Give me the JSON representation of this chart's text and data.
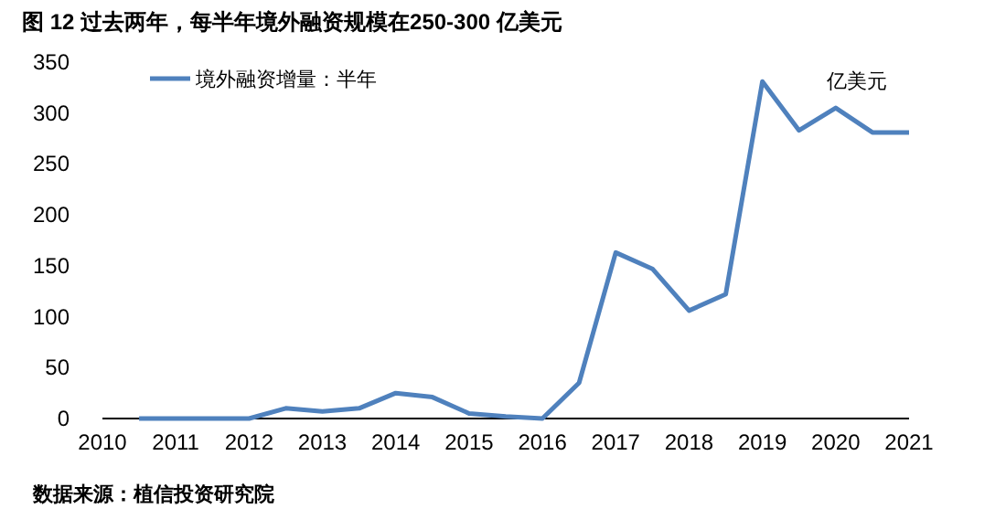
{
  "chart_data": {
    "type": "line",
    "title": "图 12 过去两年，每半年境外融资规模在250-300 亿美元",
    "annotations": [
      "亿美元",
      "数据来源：植信投资研究院"
    ],
    "series": [
      {
        "name": "境外融资增量：半年",
        "color": "#4f81bd",
        "x": [
          2010.5,
          2011,
          2011.5,
          2012,
          2012.5,
          2013,
          2013.5,
          2014,
          2014.5,
          2015,
          2015.5,
          2016,
          2016.5,
          2017,
          2017.5,
          2018,
          2018.5,
          2019,
          2019.5,
          2020,
          2020.5,
          2021
        ],
        "values": [
          0,
          0,
          0,
          0,
          10,
          7,
          10,
          25,
          21,
          5,
          2,
          0,
          35,
          163,
          147,
          106,
          122,
          331,
          283,
          305,
          281,
          281
        ]
      }
    ],
    "xlim": [
      2010,
      2021
    ],
    "xticks": [
      2010,
      2011,
      2012,
      2013,
      2014,
      2015,
      2016,
      2017,
      2018,
      2019,
      2020,
      2021
    ],
    "ylim": [
      0,
      350
    ],
    "yticks": [
      0,
      50,
      100,
      150,
      200,
      250,
      300,
      350
    ],
    "grid": false,
    "legend": "top left",
    "marker": "none",
    "line_style": "solid"
  }
}
